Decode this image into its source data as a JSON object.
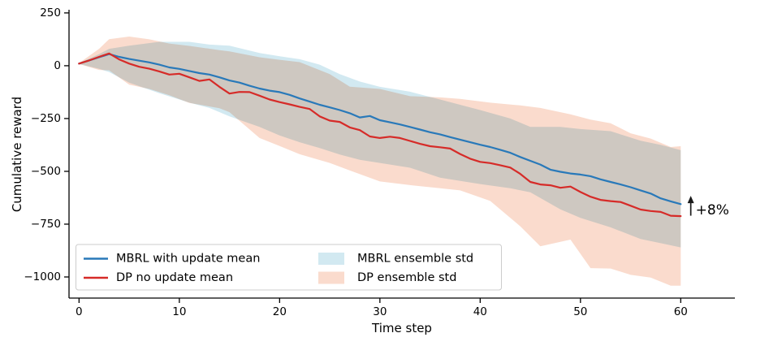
{
  "figure": {
    "background": "#ffffff",
    "text_color": "#000000",
    "spine_color": "#000000"
  },
  "chart_data": {
    "type": "line",
    "title": "",
    "xlabel": "Time step",
    "ylabel": "Cumulative reward",
    "grid": false,
    "xlim": [
      -1,
      65.4
    ],
    "ylim": [
      -1100,
      265
    ],
    "xticks": [
      0,
      10,
      20,
      30,
      40,
      50,
      60
    ],
    "yticks": [
      250,
      0,
      -250,
      -500,
      -750,
      -1000
    ],
    "x": [
      0,
      1,
      2,
      3,
      4,
      5,
      6,
      7,
      8,
      9,
      10,
      11,
      12,
      13,
      14,
      15,
      16,
      17,
      18,
      19,
      20,
      21,
      22,
      23,
      24,
      25,
      26,
      27,
      28,
      29,
      30,
      31,
      32,
      33,
      34,
      35,
      36,
      37,
      38,
      39,
      40,
      41,
      42,
      43,
      44,
      45,
      46,
      47,
      48,
      49,
      50,
      51,
      52,
      53,
      54,
      55,
      56,
      57,
      58,
      59,
      60
    ],
    "series": [
      {
        "name": "MBRL with update mean",
        "kind": "line",
        "color": "#2979b9",
        "values": [
          10,
          25,
          40,
          55,
          42,
          32,
          24,
          16,
          5,
          -8,
          -15,
          -25,
          -35,
          -42,
          -55,
          -70,
          -80,
          -95,
          -108,
          -118,
          -125,
          -138,
          -155,
          -170,
          -185,
          -197,
          -210,
          -225,
          -245,
          -238,
          -258,
          -268,
          -278,
          -290,
          -302,
          -315,
          -325,
          -338,
          -350,
          -362,
          -374,
          -385,
          -398,
          -412,
          -432,
          -450,
          -468,
          -492,
          -502,
          -510,
          -515,
          -523,
          -538,
          -550,
          -562,
          -575,
          -590,
          -605,
          -628,
          -642,
          -655
        ]
      },
      {
        "name": "DP no update mean",
        "kind": "line",
        "color": "#d62b28",
        "values": [
          10,
          25,
          42,
          58,
          30,
          10,
          -5,
          -14,
          -27,
          -42,
          -38,
          -55,
          -72,
          -65,
          -100,
          -132,
          -124,
          -125,
          -142,
          -160,
          -172,
          -183,
          -195,
          -205,
          -240,
          -260,
          -266,
          -292,
          -305,
          -335,
          -342,
          -336,
          -342,
          -356,
          -370,
          -381,
          -386,
          -392,
          -418,
          -440,
          -455,
          -461,
          -471,
          -482,
          -512,
          -550,
          -562,
          -566,
          -578,
          -572,
          -598,
          -620,
          -635,
          -641,
          -645,
          -663,
          -681,
          -688,
          -692,
          -710,
          -712
        ]
      },
      {
        "name": "MBRL ensemble std",
        "kind": "band",
        "color": "#d2e9f1",
        "t": [
          0,
          2,
          3,
          5,
          8,
          11,
          13,
          15,
          18,
          20,
          22,
          24,
          26,
          28,
          30,
          33,
          36,
          40,
          43,
          45,
          48,
          50,
          53,
          56,
          58,
          60
        ],
        "upper": [
          12,
          55,
          80,
          95,
          113,
          113,
          100,
          95,
          60,
          45,
          31,
          5,
          -40,
          -75,
          -100,
          -123,
          -160,
          -210,
          -250,
          -290,
          -290,
          -300,
          -310,
          -355,
          -375,
          -400
        ],
        "lower": [
          8,
          -15,
          -30,
          -80,
          -130,
          -175,
          -200,
          -240,
          -290,
          -330,
          -362,
          -390,
          -420,
          -445,
          -460,
          -483,
          -530,
          -560,
          -580,
          -599,
          -680,
          -720,
          -765,
          -820,
          -840,
          -860
        ]
      },
      {
        "name": "DP ensemble std",
        "kind": "band",
        "color": "#fadbcd",
        "t": [
          0,
          2,
          3,
          5,
          7,
          9,
          11,
          14,
          15,
          18,
          20,
          22,
          25,
          27,
          30,
          33,
          36,
          38,
          41,
          44,
          46,
          49,
          51,
          53,
          55,
          57,
          59,
          60
        ],
        "upper": [
          12,
          80,
          126,
          138,
          125,
          105,
          94,
          74,
          68,
          40,
          28,
          17,
          -40,
          -99,
          -110,
          -144,
          -150,
          -157,
          -175,
          -188,
          -200,
          -230,
          -255,
          -272,
          -320,
          -345,
          -385,
          -381
        ],
        "lower": [
          8,
          -20,
          -22,
          -90,
          -110,
          -140,
          -176,
          -201,
          -220,
          -342,
          -380,
          -419,
          -460,
          -496,
          -548,
          -565,
          -580,
          -590,
          -640,
          -760,
          -855,
          -823,
          -958,
          -960,
          -990,
          -1003,
          -1041,
          -1041
        ]
      }
    ],
    "legend": {
      "position": "lower left",
      "columns": 2,
      "rows": [
        [
          {
            "series": 0,
            "swatch": "line"
          },
          {
            "series": 2,
            "swatch": "patch"
          }
        ],
        [
          {
            "series": 1,
            "swatch": "line"
          },
          {
            "series": 3,
            "swatch": "patch"
          }
        ]
      ]
    },
    "annotation": {
      "text": "+8%",
      "icon": "up-arrow",
      "t": 61.0,
      "arrow_from_value": -710,
      "arrow_to_value": -620,
      "text_value": -685
    }
  }
}
